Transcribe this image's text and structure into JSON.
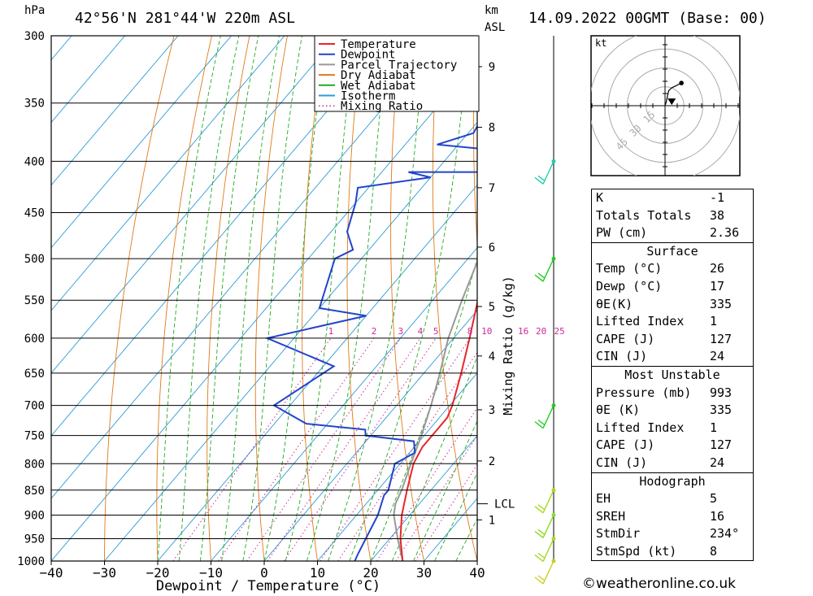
{
  "header": {
    "location": "42°56'N 281°44'W 220m ASL",
    "datetime": "14.09.2022 00GMT (Base: 00)",
    "pressure_unit": "hPa",
    "height_unit_line1": "km",
    "height_unit_line2": "ASL"
  },
  "legend": {
    "items": [
      {
        "label": "Temperature",
        "color": "#e8262a",
        "style": "solid"
      },
      {
        "label": "Dewpoint",
        "color": "#2244cc",
        "style": "solid"
      },
      {
        "label": "Parcel Trajectory",
        "color": "#999999",
        "style": "solid"
      },
      {
        "label": "Dry Adiabat",
        "color": "#e07a18",
        "style": "solid"
      },
      {
        "label": "Wet Adiabat",
        "color": "#22aa22",
        "style": "solid"
      },
      {
        "label": "Isotherm",
        "color": "#2c9ad8",
        "style": "solid"
      },
      {
        "label": "Mixing Ratio",
        "color": "#cc2a99",
        "style": "dotted"
      }
    ]
  },
  "chart_data": {
    "type": "skew-t",
    "xlabel": "Dewpoint / Temperature (°C)",
    "ylabel_right": "Mixing Ratio (g/kg)",
    "x_ticks": [
      -40,
      -30,
      -20,
      -10,
      0,
      10,
      20,
      30,
      40
    ],
    "x_tick_labels": [
      "−40",
      "−30",
      "−20",
      "−10",
      "0",
      "10",
      "20",
      "30",
      "40"
    ],
    "pressure_levels": [
      300,
      350,
      400,
      450,
      500,
      550,
      600,
      650,
      700,
      750,
      800,
      850,
      900,
      950,
      1000
    ],
    "height_ticks_km": [
      {
        "km": 1,
        "p": 910
      },
      {
        "km": 2,
        "p": 795
      },
      {
        "km": 3,
        "p": 707
      },
      {
        "km": 4,
        "p": 625
      },
      {
        "km": 5,
        "p": 558
      },
      {
        "km": 6,
        "p": 487
      },
      {
        "km": 7,
        "p": 425
      },
      {
        "km": 8,
        "p": 370
      },
      {
        "km": 9,
        "p": 322
      }
    ],
    "lcl": {
      "label": "LCL",
      "p": 877
    },
    "mixing_ratio_labels": [
      "1",
      "2",
      "3",
      "4",
      "5",
      "8",
      "10",
      "16",
      "20",
      "25"
    ],
    "mixing_ratio_values": [
      1,
      2,
      3,
      4,
      5,
      8,
      10,
      16,
      20,
      25
    ],
    "temperature": [
      {
        "p": 1000,
        "t": 26
      },
      {
        "p": 950,
        "t": 22
      },
      {
        "p": 900,
        "t": 18.5
      },
      {
        "p": 850,
        "t": 15.5
      },
      {
        "p": 800,
        "t": 12.5
      },
      {
        "p": 770,
        "t": 11.5
      },
      {
        "p": 740,
        "t": 11.5
      },
      {
        "p": 720,
        "t": 11.5
      },
      {
        "p": 700,
        "t": 10.5
      },
      {
        "p": 650,
        "t": 7
      },
      {
        "p": 600,
        "t": 3
      },
      {
        "p": 550,
        "t": -1.5
      },
      {
        "p": 500,
        "t": -6.5
      },
      {
        "p": 450,
        "t": -12
      },
      {
        "p": 400,
        "t": -18.5
      },
      {
        "p": 350,
        "t": -27.5
      },
      {
        "p": 300,
        "t": -37
      }
    ],
    "dewpoint": [
      {
        "p": 1000,
        "t": 17
      },
      {
        "p": 985,
        "t": 16.5
      },
      {
        "p": 950,
        "t": 15.5
      },
      {
        "p": 900,
        "t": 14
      },
      {
        "p": 860,
        "t": 12
      },
      {
        "p": 850,
        "t": 12
      },
      {
        "p": 800,
        "t": 9
      },
      {
        "p": 780,
        "t": 11
      },
      {
        "p": 760,
        "t": 9
      },
      {
        "p": 750,
        "t": -1
      },
      {
        "p": 740,
        "t": -2
      },
      {
        "p": 730,
        "t": -14
      },
      {
        "p": 700,
        "t": -23
      },
      {
        "p": 640,
        "t": -18
      },
      {
        "p": 600,
        "t": -35
      },
      {
        "p": 570,
        "t": -20
      },
      {
        "p": 560,
        "t": -30
      },
      {
        "p": 500,
        "t": -35
      },
      {
        "p": 490,
        "t": -33
      },
      {
        "p": 470,
        "t": -37
      },
      {
        "p": 440,
        "t": -40
      },
      {
        "p": 425,
        "t": -42
      },
      {
        "p": 415,
        "t": -30
      },
      {
        "p": 410,
        "t": -35
      },
      {
        "p": 410,
        "t": -19
      },
      {
        "p": 400,
        "t": -18
      },
      {
        "p": 390,
        "t": -22
      },
      {
        "p": 385,
        "t": -34
      },
      {
        "p": 375,
        "t": -29
      },
      {
        "p": 360,
        "t": -30
      },
      {
        "p": 355,
        "t": -26
      },
      {
        "p": 345,
        "t": -27
      },
      {
        "p": 330,
        "t": -34
      },
      {
        "p": 320,
        "t": -37
      },
      {
        "p": 310,
        "t": -36
      },
      {
        "p": 300,
        "t": -41
      }
    ],
    "parcel": [
      {
        "p": 1000,
        "t": 26
      },
      {
        "p": 950,
        "t": 21.5
      },
      {
        "p": 900,
        "t": 17
      },
      {
        "p": 877,
        "t": 15.5
      },
      {
        "p": 850,
        "t": 14.5
      },
      {
        "p": 800,
        "t": 12
      },
      {
        "p": 750,
        "t": 9.5
      },
      {
        "p": 700,
        "t": 6.5
      },
      {
        "p": 650,
        "t": 3
      },
      {
        "p": 600,
        "t": -1
      },
      {
        "p": 550,
        "t": -4.5
      },
      {
        "p": 500,
        "t": -8
      },
      {
        "p": 450,
        "t": -12.5
      },
      {
        "p": 400,
        "t": -19
      },
      {
        "p": 350,
        "t": -27
      },
      {
        "p": 300,
        "t": -37
      }
    ],
    "wind_barbs": [
      {
        "p": 1000,
        "color": "#cccc22"
      },
      {
        "p": 950,
        "color": "#aad822"
      },
      {
        "p": 900,
        "color": "#88dd22"
      },
      {
        "p": 850,
        "color": "#aad822"
      },
      {
        "p": 700,
        "color": "#22cc22"
      },
      {
        "p": 500,
        "color": "#22cc22"
      },
      {
        "p": 400,
        "color": "#22ccaa"
      }
    ]
  },
  "hodograph": {
    "unit": "kt",
    "ring_labels": [
      "15",
      "30",
      "45"
    ],
    "trace": [
      [
        0,
        0
      ],
      [
        1,
        3
      ],
      [
        2,
        8
      ],
      [
        3,
        12
      ],
      [
        5,
        14
      ],
      [
        13,
        18
      ]
    ],
    "storm_motion": [
      -0.5,
      -2
    ]
  },
  "indices": {
    "general": [
      {
        "label": "K",
        "value": "-1"
      },
      {
        "label": "Totals Totals",
        "value": "38"
      },
      {
        "label": "PW (cm)",
        "value": "2.36"
      }
    ],
    "surface": {
      "title": "Surface",
      "rows": [
        {
          "label": "Temp (°C)",
          "value": "26"
        },
        {
          "label": "Dewp (°C)",
          "value": "17"
        },
        {
          "label": "θE(K)",
          "value": "335"
        },
        {
          "label": "Lifted Index",
          "value": "1"
        },
        {
          "label": "CAPE (J)",
          "value": "127"
        },
        {
          "label": "CIN (J)",
          "value": "24"
        }
      ]
    },
    "most_unstable": {
      "title": "Most Unstable",
      "rows": [
        {
          "label": "Pressure (mb)",
          "value": "993"
        },
        {
          "label": "θE (K)",
          "value": "335"
        },
        {
          "label": "Lifted Index",
          "value": "1"
        },
        {
          "label": "CAPE (J)",
          "value": "127"
        },
        {
          "label": "CIN (J)",
          "value": "24"
        }
      ]
    },
    "hodograph_box": {
      "title": "Hodograph",
      "rows": [
        {
          "label": "EH",
          "value": "5"
        },
        {
          "label": "SREH",
          "value": "16"
        },
        {
          "label": "StmDir",
          "value": "234°"
        },
        {
          "label": "StmSpd (kt)",
          "value": "8"
        }
      ]
    }
  },
  "footer": {
    "text": "weatheronline.co.uk",
    "copyright_symbol": "©"
  }
}
